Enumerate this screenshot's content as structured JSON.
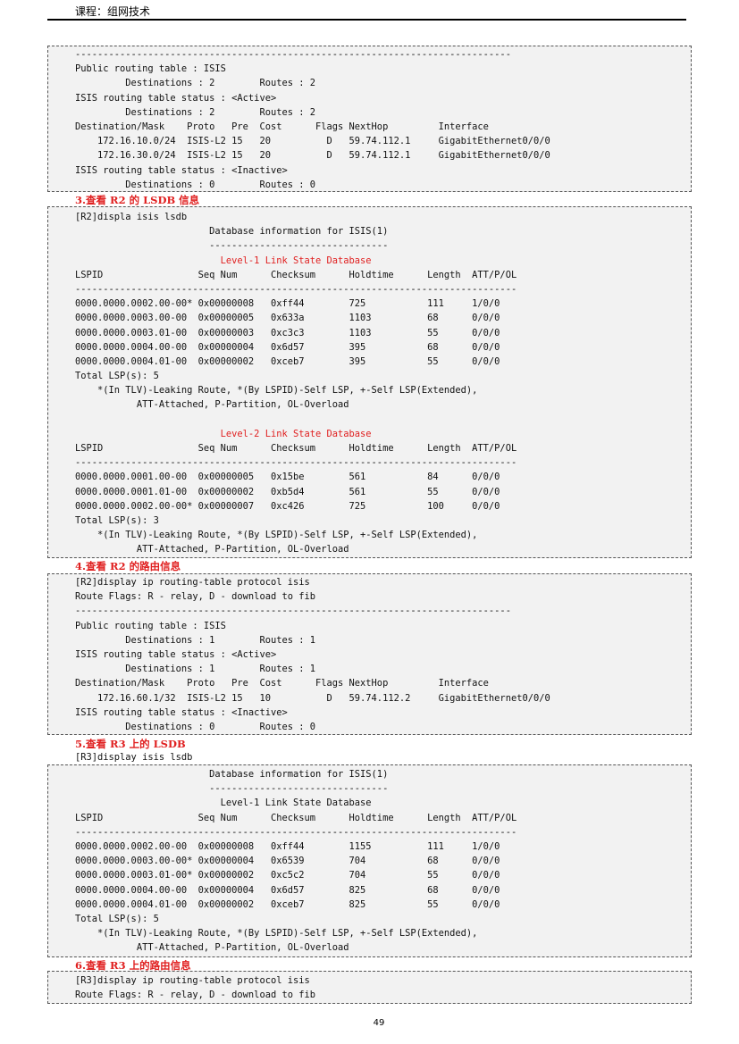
{
  "header": {
    "course": "课程：组网技术"
  },
  "boxes": [
    {
      "lines": [
        {
          "text": "------------------------------------------------------------------------------"
        },
        {
          "text": "Public routing table : ISIS"
        },
        {
          "text": "         Destinations : 2        Routes : 2"
        },
        {
          "text": "ISIS routing table status : <Active>"
        },
        {
          "text": "         Destinations : 2        Routes : 2"
        },
        {
          "text": "Destination/Mask    Proto   Pre  Cost      Flags NextHop         Interface"
        },
        {
          "text": "    172.16.10.0/24  ISIS-L2 15   20          D   59.74.112.1     GigabitEthernet0/0/0"
        },
        {
          "text": "    172.16.30.0/24  ISIS-L2 15   20          D   59.74.112.1     GigabitEthernet0/0/0"
        },
        {
          "text": "ISIS routing table status : <Inactive>"
        },
        {
          "text": "         Destinations : 0        Routes : 0"
        }
      ]
    },
    {
      "lines": [
        {
          "text": "[R2]displa isis lsdb"
        },
        {
          "text": "                        Database information for ISIS(1)"
        },
        {
          "text": "                        --------------------------------"
        },
        {
          "text": "                          Level-1 Link State Database",
          "red": true
        },
        {
          "text": "LSPID                 Seq Num      Checksum      Holdtime      Length  ATT/P/OL"
        },
        {
          "text": "-------------------------------------------------------------------------------"
        },
        {
          "text": "0000.0000.0002.00-00* 0x00000008   0xff44        725           111     1/0/0"
        },
        {
          "text": "0000.0000.0003.00-00  0x00000005   0x633a        1103          68      0/0/0"
        },
        {
          "text": "0000.0000.0003.01-00  0x00000003   0xc3c3        1103          55      0/0/0"
        },
        {
          "text": "0000.0000.0004.00-00  0x00000004   0x6d57        395           68      0/0/0"
        },
        {
          "text": "0000.0000.0004.01-00  0x00000002   0xceb7        395           55      0/0/0"
        },
        {
          "text": "Total LSP(s): 5"
        },
        {
          "text": "    *(In TLV)-Leaking Route, *(By LSPID)-Self LSP, +-Self LSP(Extended),"
        },
        {
          "text": "           ATT-Attached, P-Partition, OL-Overload"
        },
        {
          "text": ""
        },
        {
          "text": "                          Level-2 Link State Database",
          "red": true
        },
        {
          "text": "LSPID                 Seq Num      Checksum      Holdtime      Length  ATT/P/OL"
        },
        {
          "text": "-------------------------------------------------------------------------------"
        },
        {
          "text": "0000.0000.0001.00-00  0x00000005   0x15be        561           84      0/0/0"
        },
        {
          "text": "0000.0000.0001.01-00  0x00000002   0xb5d4        561           55      0/0/0"
        },
        {
          "text": "0000.0000.0002.00-00* 0x00000007   0xc426        725           100     0/0/0"
        },
        {
          "text": "Total LSP(s): 3"
        },
        {
          "text": "    *(In TLV)-Leaking Route, *(By LSPID)-Self LSP, +-Self LSP(Extended),"
        },
        {
          "text": "           ATT-Attached, P-Partition, OL-Overload"
        }
      ]
    },
    {
      "lines": [
        {
          "text": "[R2]display ip routing-table protocol isis"
        },
        {
          "text": "Route Flags: R - relay, D - download to fib"
        },
        {
          "text": "------------------------------------------------------------------------------"
        },
        {
          "text": "Public routing table : ISIS"
        },
        {
          "text": "         Destinations : 1        Routes : 1"
        },
        {
          "text": "ISIS routing table status : <Active>"
        },
        {
          "text": "         Destinations : 1        Routes : 1"
        },
        {
          "text": "Destination/Mask    Proto   Pre  Cost      Flags NextHop         Interface"
        },
        {
          "text": "    172.16.60.1/32  ISIS-L2 15   10          D   59.74.112.2     GigabitEthernet0/0/0"
        },
        {
          "text": "ISIS routing table status : <Inactive>"
        },
        {
          "text": "         Destinations : 0        Routes : 0"
        }
      ]
    },
    {
      "lines": [
        {
          "text": "                        Database information for ISIS(1)"
        },
        {
          "text": "                        --------------------------------"
        },
        {
          "text": "                          Level-1 Link State Database"
        },
        {
          "text": "LSPID                 Seq Num      Checksum      Holdtime      Length  ATT/P/OL"
        },
        {
          "text": "-------------------------------------------------------------------------------"
        },
        {
          "text": "0000.0000.0002.00-00  0x00000008   0xff44        1155          111     1/0/0"
        },
        {
          "text": "0000.0000.0003.00-00* 0x00000004   0x6539        704           68      0/0/0"
        },
        {
          "text": "0000.0000.0003.01-00* 0x00000002   0xc5c2        704           55      0/0/0"
        },
        {
          "text": "0000.0000.0004.00-00  0x00000004   0x6d57        825           68      0/0/0"
        },
        {
          "text": "0000.0000.0004.01-00  0x00000002   0xceb7        825           55      0/0/0"
        },
        {
          "text": "Total LSP(s): 5"
        },
        {
          "text": "    *(In TLV)-Leaking Route, *(By LSPID)-Self LSP, +-Self LSP(Extended),"
        },
        {
          "text": "           ATT-Attached, P-Partition, OL-Overload"
        }
      ]
    },
    {
      "lines": [
        {
          "text": "[R3]display ip routing-table protocol isis"
        },
        {
          "text": "Route Flags: R - relay, D - download to fib"
        }
      ]
    }
  ],
  "headings": {
    "h3": "3.查看 R2 的 LSDB 信息",
    "h4": "4.查看 R2 的路由信息",
    "h5": "5.查看 R3 上的 LSDB",
    "h6": "6.查看 R3 上的路由信息"
  },
  "r3_command": "[R3]display isis lsdb",
  "page_number": "49",
  "colors": {
    "heading": "#e02020",
    "box_bg": "#f2f2f2"
  }
}
